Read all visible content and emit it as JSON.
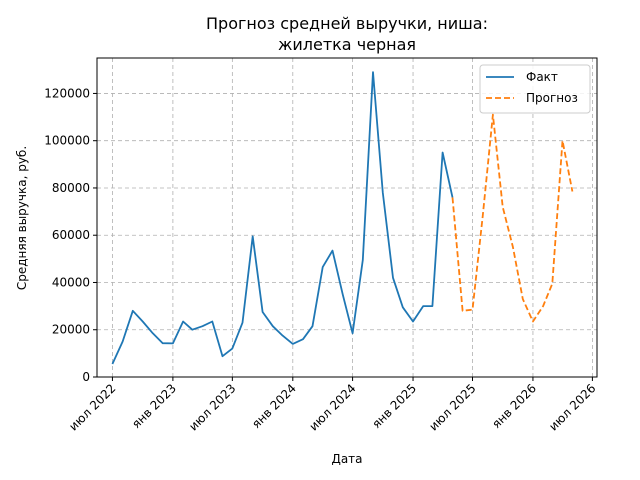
{
  "chart_data": {
    "type": "line",
    "title": [
      "Прогноз средней выручки, ниша:",
      "жилетка черная"
    ],
    "xlabel": "Дата",
    "ylabel": "Средняя выручка, руб.",
    "xlim": [
      "2022-05-15",
      "2026-07-15"
    ],
    "ylim": [
      0,
      135000
    ],
    "grid": true,
    "legend_position": "top-right",
    "x_ticks": [
      {
        "date": "2022-07-01",
        "label": "июл 2022"
      },
      {
        "date": "2023-01-01",
        "label": "янв 2023"
      },
      {
        "date": "2023-07-01",
        "label": "июл 2023"
      },
      {
        "date": "2024-01-01",
        "label": "янв 2024"
      },
      {
        "date": "2024-07-01",
        "label": "июл 2024"
      },
      {
        "date": "2025-01-01",
        "label": "янв 2025"
      },
      {
        "date": "2025-07-01",
        "label": "июл 2025"
      },
      {
        "date": "2026-01-01",
        "label": "янв 2026"
      },
      {
        "date": "2026-07-01",
        "label": "июл 2026"
      }
    ],
    "y_ticks": [
      0,
      20000,
      40000,
      60000,
      80000,
      100000,
      120000
    ],
    "series": [
      {
        "name": "Факт",
        "color": "#1f77b4",
        "style": "solid",
        "points": [
          [
            "2022-07-01",
            5500
          ],
          [
            "2022-08-01",
            15000
          ],
          [
            "2022-09-01",
            28000
          ],
          [
            "2022-10-01",
            23500
          ],
          [
            "2022-11-01",
            18500
          ],
          [
            "2022-12-01",
            14300
          ],
          [
            "2023-01-01",
            14200
          ],
          [
            "2023-02-01",
            23500
          ],
          [
            "2023-03-01",
            20000
          ],
          [
            "2023-04-01",
            21500
          ],
          [
            "2023-05-01",
            23500
          ],
          [
            "2023-06-01",
            8800
          ],
          [
            "2023-07-01",
            12000
          ],
          [
            "2023-08-01",
            23000
          ],
          [
            "2023-09-01",
            59500
          ],
          [
            "2023-10-01",
            27500
          ],
          [
            "2023-11-01",
            21500
          ],
          [
            "2023-12-01",
            17500
          ],
          [
            "2024-01-01",
            14000
          ],
          [
            "2024-02-01",
            16000
          ],
          [
            "2024-03-01",
            21500
          ],
          [
            "2024-04-01",
            46500
          ],
          [
            "2024-05-01",
            53500
          ],
          [
            "2024-06-01",
            35000
          ],
          [
            "2024-07-01",
            18500
          ],
          [
            "2024-08-01",
            49500
          ],
          [
            "2024-09-01",
            129000
          ],
          [
            "2024-10-01",
            78000
          ],
          [
            "2024-11-01",
            42000
          ],
          [
            "2024-12-01",
            29500
          ],
          [
            "2025-01-01",
            23500
          ],
          [
            "2025-02-01",
            30000
          ],
          [
            "2025-03-01",
            30000
          ],
          [
            "2025-04-01",
            95000
          ],
          [
            "2025-05-01",
            76000
          ]
        ]
      },
      {
        "name": "Прогноз",
        "color": "#ff7f0e",
        "style": "dashed",
        "points": [
          [
            "2025-05-01",
            76000
          ],
          [
            "2025-06-01",
            28000
          ],
          [
            "2025-07-01",
            28500
          ],
          [
            "2025-08-01",
            68000
          ],
          [
            "2025-09-01",
            111000
          ],
          [
            "2025-10-01",
            72000
          ],
          [
            "2025-11-01",
            55000
          ],
          [
            "2025-12-01",
            33000
          ],
          [
            "2026-01-01",
            23500
          ],
          [
            "2026-02-01",
            30000
          ],
          [
            "2026-03-01",
            39500
          ],
          [
            "2026-04-01",
            100000
          ],
          [
            "2026-05-01",
            78500
          ]
        ]
      }
    ]
  }
}
